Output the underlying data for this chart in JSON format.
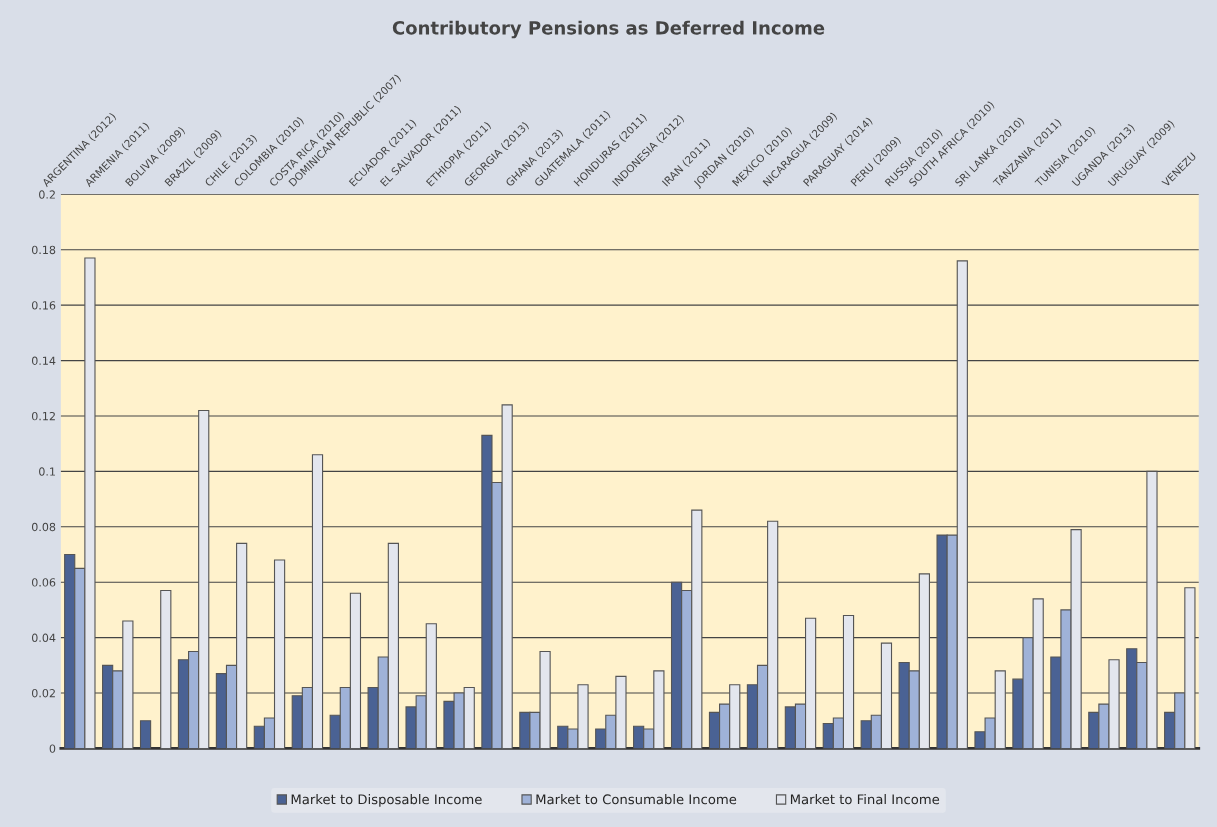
{
  "chart_data": {
    "type": "bar",
    "title": "Contributory Pensions as Deferred Income",
    "categories": [
      "ARGENTINA (2012)",
      "ARMENIA (2011)",
      "BOLIVIA (2009)",
      "BRAZIL (2009)",
      "CHILE (2013)",
      "COLOMBIA (2010)",
      "COSTA RICA (2010)",
      "DOMINICAN REPUBLIC (2007)",
      "ECUADOR (2011)",
      "EL SALVADOR (2011)",
      "ETHIOPIA (2011)",
      "GEORGIA (2013)",
      "GHANA (2013)",
      "GUATEMALA (2011)",
      "HONDURAS (2011)",
      "INDONESIA (2012)",
      "IRAN (2011)",
      "JORDAN (2010)",
      "MEXICO (2010)",
      "NICARAGUA (2009)",
      "PARAGUAY (2014)",
      "PERU (2009)",
      "RUSSIA (2010)",
      "SOUTH AFRICA (2010)",
      "SRI LANKA (2010)",
      "TANZANIA (2011)",
      "TUNISIA (2010)",
      "UGANDA (2013)",
      "URUGUAY (2009)",
      "VENEZU"
    ],
    "series": [
      {
        "name": "Market to Disposable Income",
        "color": "#4a6294",
        "values": [
          0.07,
          0.03,
          0.01,
          0.032,
          0.027,
          0.008,
          0.019,
          0.012,
          0.022,
          0.015,
          0.017,
          0.113,
          0.013,
          0.008,
          0.007,
          0.008,
          0.06,
          0.013,
          0.023,
          0.015,
          0.009,
          0.01,
          0.031,
          0.077,
          0.006,
          0.025,
          0.033,
          0.013,
          0.036,
          0.013
        ]
      },
      {
        "name": "Market to Consumable Income",
        "color": "#9fb2d8",
        "values": [
          0.065,
          0.028,
          null,
          0.035,
          0.03,
          0.011,
          0.022,
          0.022,
          0.033,
          0.019,
          0.02,
          0.096,
          0.013,
          0.007,
          0.012,
          0.007,
          0.057,
          0.016,
          0.03,
          0.016,
          0.011,
          0.012,
          0.028,
          0.077,
          0.011,
          0.04,
          0.05,
          0.016,
          0.031,
          0.02
        ]
      },
      {
        "name": "Market to Final Income",
        "color": "#e3e6ee",
        "values": [
          0.177,
          0.046,
          0.057,
          0.122,
          0.074,
          0.068,
          0.106,
          0.056,
          0.074,
          0.045,
          0.022,
          0.124,
          0.035,
          0.023,
          0.026,
          0.028,
          0.086,
          0.023,
          0.082,
          0.047,
          0.048,
          0.038,
          0.063,
          0.176,
          0.028,
          0.054,
          0.079,
          0.032,
          0.1,
          0.058
        ]
      }
    ],
    "ylim": [
      0,
      0.2
    ],
    "yticks": [
      0,
      0.02,
      0.04,
      0.06,
      0.08,
      0.1,
      0.12,
      0.14,
      0.16,
      0.18,
      0.2
    ],
    "grid": "y",
    "legend": "bottom"
  }
}
